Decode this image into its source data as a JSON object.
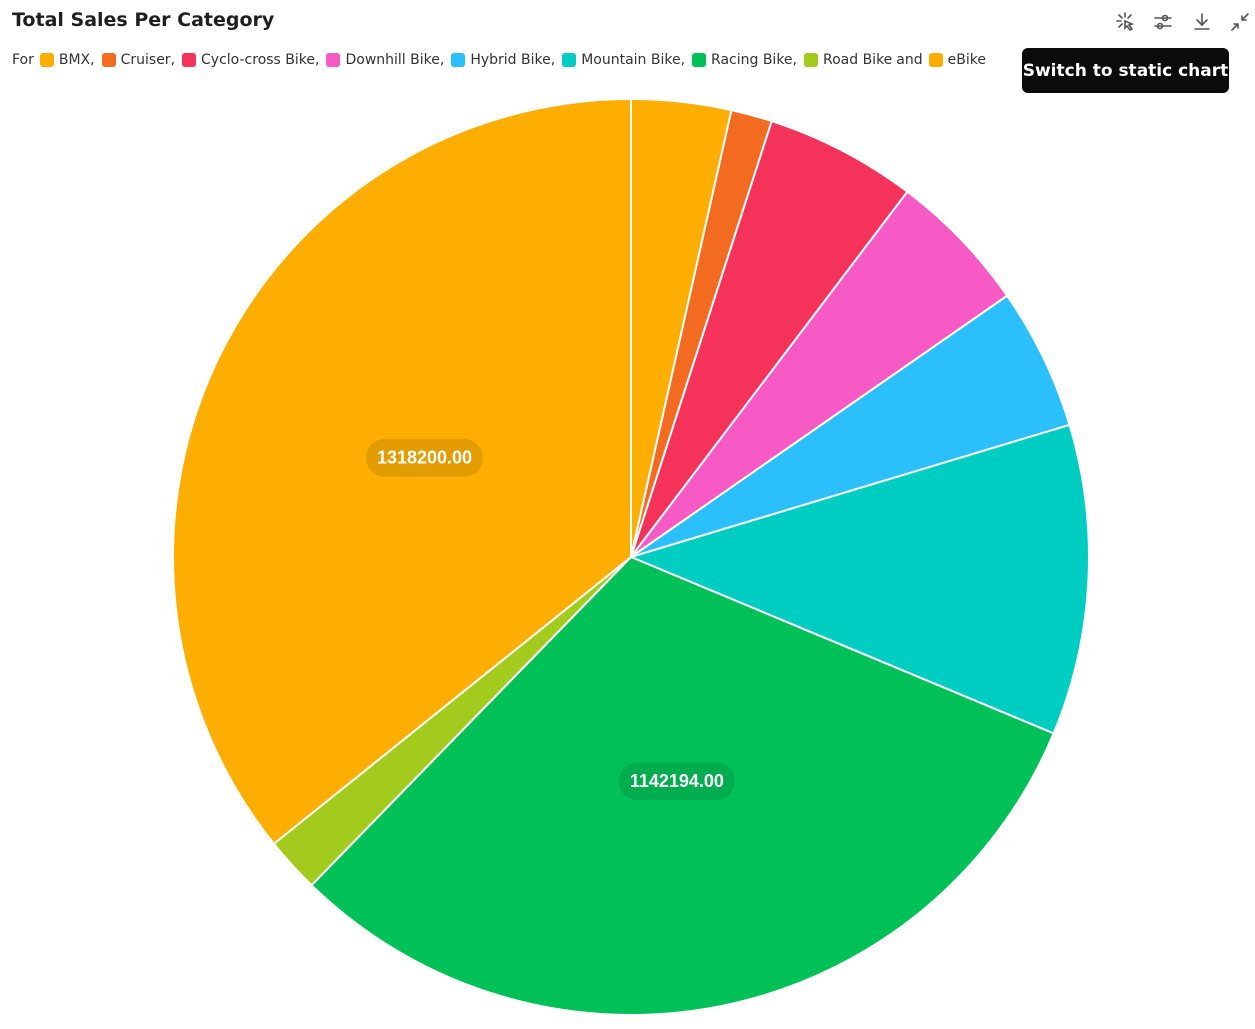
{
  "chart_data": {
    "type": "pie",
    "title": "Total Sales Per Category",
    "legend_prefix": "For",
    "legend_separator": ",",
    "legend_conjunction": "and",
    "categories": [
      "BMX",
      "Cruiser",
      "Cyclo-cross Bike",
      "Downhill Bike",
      "Hybrid Bike",
      "Mountain Bike",
      "Racing Bike",
      "Road Bike",
      "eBike"
    ],
    "colors": [
      "#fdae00",
      "#f26b21",
      "#f5325a",
      "#f75ac4",
      "#2bbffb",
      "#00cdc2",
      "#00c157",
      "#a2cb1d",
      "#fdae00"
    ],
    "values": [
      129700,
      53500,
      196700,
      185400,
      184400,
      403600,
      1142194,
      71700,
      1318200
    ],
    "value_labels": [
      null,
      null,
      null,
      null,
      null,
      null,
      "1142194.00",
      null,
      "1318200.00"
    ]
  },
  "toolbar": {
    "tooltip": "Switch to static chart"
  }
}
